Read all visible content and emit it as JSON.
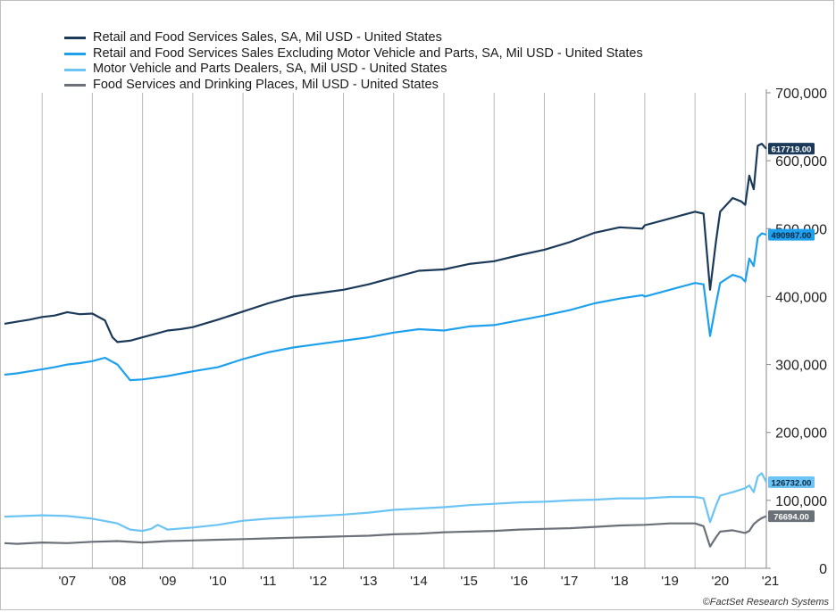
{
  "chart_data": {
    "type": "line",
    "ylim": [
      0,
      700000
    ],
    "y_ticks": [
      "0",
      "100,000",
      "200,000",
      "300,000",
      "400,000",
      "500,000",
      "600,000",
      "700,000"
    ],
    "y_tick_values": [
      0,
      100000,
      200000,
      300000,
      400000,
      500000,
      600000,
      700000
    ],
    "x_tick_labels": [
      "'07",
      "'08",
      "'09",
      "'10",
      "'11",
      "'12",
      "'13",
      "'14",
      "'15",
      "'16",
      "'17",
      "'18",
      "'19",
      "'20",
      "'21"
    ],
    "x_range": [
      2006.25,
      2021.42
    ],
    "grid": "vertical",
    "legend_position": "top-left",
    "series": [
      {
        "name": "Retail and Food Services Sales, SA, Mil USD - United States",
        "color": "#1b3a5a",
        "last_label": "617719.00",
        "x": [
          2006.25,
          2006.5,
          2006.75,
          2007.0,
          2007.25,
          2007.5,
          2007.75,
          2008.0,
          2008.25,
          2008.4,
          2008.5,
          2008.75,
          2009.0,
          2009.25,
          2009.5,
          2009.75,
          2010.0,
          2010.5,
          2011.0,
          2011.5,
          2012.0,
          2012.5,
          2013.0,
          2013.5,
          2014.0,
          2014.5,
          2015.0,
          2015.5,
          2016.0,
          2016.5,
          2017.0,
          2017.5,
          2018.0,
          2018.5,
          2018.95,
          2019.0,
          2019.5,
          2019.75,
          2020.0,
          2020.17,
          2020.3,
          2020.42,
          2020.5,
          2020.75,
          2020.92,
          2021.0,
          2021.08,
          2021.17,
          2021.25,
          2021.33,
          2021.42
        ],
        "values": [
          360000,
          363000,
          366000,
          370000,
          372000,
          377000,
          374000,
          375000,
          365000,
          340000,
          333000,
          335000,
          340000,
          345000,
          350000,
          352000,
          355000,
          366000,
          378000,
          390000,
          400000,
          405000,
          410000,
          418000,
          428000,
          438000,
          440000,
          448000,
          452000,
          461000,
          469000,
          480000,
          494000,
          502000,
          500000,
          505000,
          515000,
          520000,
          525000,
          522000,
          410000,
          483000,
          525000,
          545000,
          540000,
          535000,
          578000,
          558000,
          622000,
          625000,
          617719
        ]
      },
      {
        "name": "Retail and Food Services Sales Excluding Motor Vehicle and Parts, SA, Mil USD - United States",
        "color": "#1ea0ec",
        "last_label": "490987.00",
        "x": [
          2006.25,
          2006.5,
          2006.75,
          2007.0,
          2007.25,
          2007.5,
          2007.75,
          2008.0,
          2008.25,
          2008.5,
          2008.75,
          2009.0,
          2009.5,
          2010.0,
          2010.5,
          2011.0,
          2011.5,
          2012.0,
          2012.5,
          2013.0,
          2013.5,
          2014.0,
          2014.5,
          2015.0,
          2015.5,
          2016.0,
          2016.5,
          2017.0,
          2017.5,
          2018.0,
          2018.5,
          2018.95,
          2019.0,
          2019.5,
          2019.75,
          2020.0,
          2020.17,
          2020.3,
          2020.42,
          2020.5,
          2020.75,
          2020.92,
          2021.0,
          2021.08,
          2021.17,
          2021.25,
          2021.33,
          2021.42
        ],
        "values": [
          285000,
          287000,
          290000,
          293000,
          296000,
          300000,
          302000,
          305000,
          310000,
          300000,
          277000,
          278000,
          283000,
          290000,
          296000,
          308000,
          318000,
          325000,
          330000,
          335000,
          340000,
          347000,
          352000,
          350000,
          356000,
          358000,
          365000,
          372000,
          380000,
          390000,
          397000,
          402000,
          400000,
          410000,
          415000,
          420000,
          418000,
          342000,
          390000,
          420000,
          432000,
          428000,
          422000,
          456000,
          445000,
          487000,
          493000,
          490987
        ]
      },
      {
        "name": "Motor Vehicle and Parts Dealers, SA, Mil USD - United States",
        "color": "#6cc4f4",
        "last_label": "126732.00",
        "x": [
          2006.25,
          2007.0,
          2007.5,
          2008.0,
          2008.5,
          2008.75,
          2009.0,
          2009.17,
          2009.3,
          2009.5,
          2010.0,
          2010.5,
          2011.0,
          2011.5,
          2012.0,
          2012.5,
          2013.0,
          2013.5,
          2014.0,
          2014.5,
          2015.0,
          2015.5,
          2016.0,
          2016.5,
          2017.0,
          2017.5,
          2018.0,
          2018.5,
          2019.0,
          2019.5,
          2020.0,
          2020.17,
          2020.3,
          2020.42,
          2020.5,
          2020.75,
          2021.0,
          2021.08,
          2021.17,
          2021.25,
          2021.33,
          2021.42
        ],
        "values": [
          76000,
          78000,
          77000,
          73000,
          66000,
          57000,
          55000,
          58000,
          64000,
          57000,
          60000,
          64000,
          70000,
          73000,
          75000,
          77000,
          79000,
          82000,
          86000,
          88000,
          90000,
          93000,
          95000,
          97000,
          98000,
          100000,
          101000,
          103000,
          103000,
          105000,
          105000,
          103000,
          68000,
          93000,
          107000,
          112000,
          118000,
          122000,
          112000,
          135000,
          140000,
          126732
        ]
      },
      {
        "name": "Food Services and Drinking Places, Mil USD - United States",
        "color": "#6b7178",
        "last_label": "76694.00",
        "x": [
          2006.25,
          2006.5,
          2007.0,
          2007.5,
          2008.0,
          2008.5,
          2009.0,
          2009.5,
          2010.0,
          2010.5,
          2011.0,
          2011.5,
          2012.0,
          2012.5,
          2013.0,
          2013.5,
          2014.0,
          2014.5,
          2015.0,
          2015.5,
          2016.0,
          2016.5,
          2017.0,
          2017.5,
          2018.0,
          2018.5,
          2019.0,
          2019.5,
          2020.0,
          2020.17,
          2020.3,
          2020.42,
          2020.5,
          2020.75,
          2021.0,
          2021.08,
          2021.17,
          2021.25,
          2021.33,
          2021.42
        ],
        "values": [
          37000,
          36000,
          38000,
          37000,
          39000,
          40000,
          38000,
          40000,
          41000,
          42000,
          43000,
          44000,
          45000,
          46000,
          47000,
          48000,
          50000,
          51000,
          53000,
          54000,
          55000,
          57000,
          58000,
          59000,
          61000,
          63000,
          64000,
          66000,
          66000,
          62000,
          32000,
          46000,
          54000,
          56000,
          52000,
          55000,
          65000,
          70000,
          74000,
          76694
        ]
      }
    ]
  },
  "footer": "©FactSet Research Systems"
}
